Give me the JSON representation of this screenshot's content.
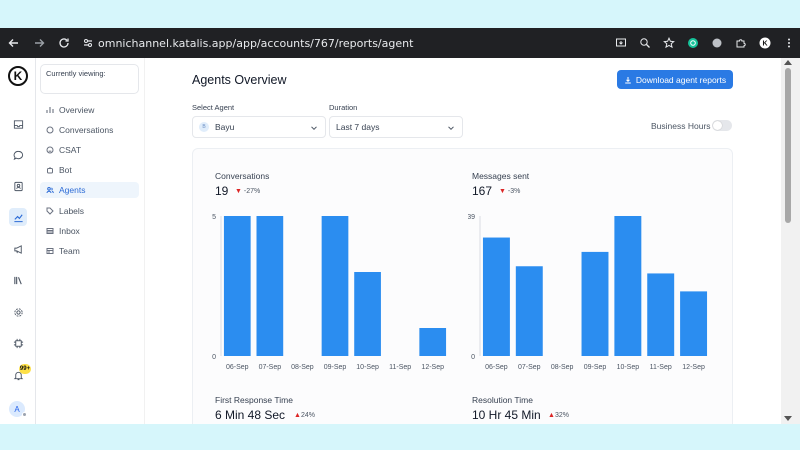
{
  "browser": {
    "url": "omnichannel.katalis.app/app/accounts/767/reports/agent"
  },
  "rail": {
    "logo_letter": "K",
    "notification_badge": "99+",
    "avatar_letter": "A"
  },
  "subnav": {
    "viewing_label": "Currently viewing:",
    "items": [
      {
        "label": "Overview",
        "icon": "overview-icon",
        "active": false
      },
      {
        "label": "Conversations",
        "icon": "chat-icon",
        "active": false
      },
      {
        "label": "CSAT",
        "icon": "smile-icon",
        "active": false
      },
      {
        "label": "Bot",
        "icon": "bot-icon",
        "active": false
      },
      {
        "label": "Agents",
        "icon": "people-icon",
        "active": true
      },
      {
        "label": "Labels",
        "icon": "tag-icon",
        "active": false
      },
      {
        "label": "Inbox",
        "icon": "inbox-icon",
        "active": false
      },
      {
        "label": "Team",
        "icon": "team-icon",
        "active": false
      }
    ]
  },
  "header": {
    "title": "Agents Overview",
    "download_label": "Download agent reports"
  },
  "filters": {
    "agent_label": "Select Agent",
    "agent_value": "Bayu",
    "agent_initial": "B",
    "duration_label": "Duration",
    "duration_value": "Last 7 days",
    "business_hours_label": "Business Hours",
    "business_hours_on": false
  },
  "metrics": {
    "conversations": {
      "label": "Conversations",
      "value": "19",
      "delta": "-27%"
    },
    "messages": {
      "label": "Messages sent",
      "value": "167",
      "delta": "-3%"
    },
    "first_response": {
      "label": "First Response Time",
      "value": "6 Min 48 Sec",
      "delta": "24%"
    },
    "resolution": {
      "label": "Resolution Time",
      "value": "10 Hr 45 Min",
      "delta": "32%"
    }
  },
  "colors": {
    "accent": "#2a7ae4",
    "bar": "#2b8df0",
    "delta_arrow": "#dc2626"
  },
  "chart_data": [
    {
      "type": "bar",
      "categories": [
        "06-Sep",
        "07-Sep",
        "08-Sep",
        "09-Sep",
        "10-Sep",
        "11-Sep",
        "12-Sep"
      ],
      "values": [
        5,
        5,
        0,
        5,
        3,
        0,
        1
      ],
      "ylim": [
        0,
        5
      ],
      "y_ticks": [
        "0",
        "5"
      ],
      "grid": false
    },
    {
      "type": "bar",
      "categories": [
        "06-Sep",
        "07-Sep",
        "08-Sep",
        "09-Sep",
        "10-Sep",
        "11-Sep",
        "12-Sep"
      ],
      "values": [
        33,
        25,
        0,
        29,
        39,
        23,
        18
      ],
      "ylim": [
        0,
        39
      ],
      "y_ticks": [
        "0",
        "39"
      ],
      "grid": false
    }
  ]
}
